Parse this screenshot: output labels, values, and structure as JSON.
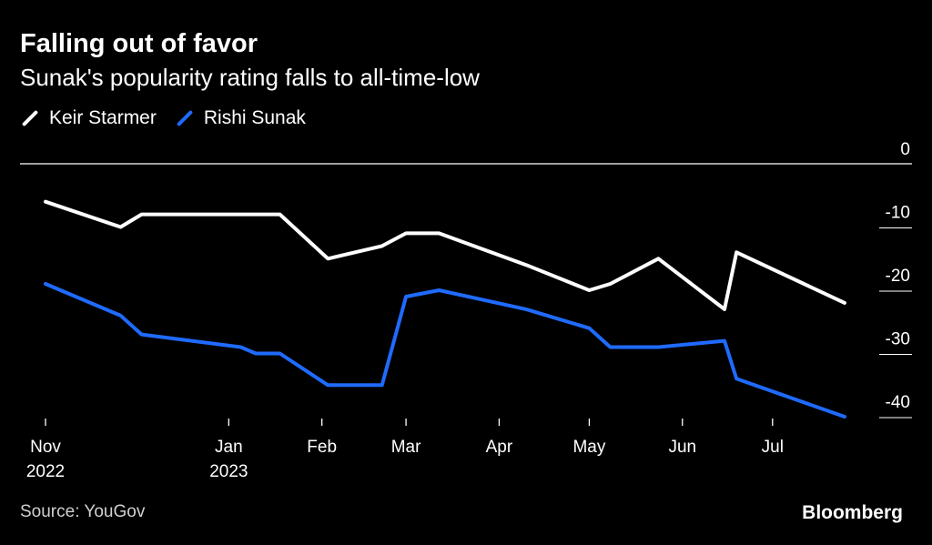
{
  "chart_data": {
    "type": "line",
    "title": "Falling out of favor",
    "subtitle": "Sunak's popularity rating falls to all-time-low",
    "ylim": [
      -42,
      0
    ],
    "y_ticks": [
      0,
      -10,
      -20,
      -30,
      -40
    ],
    "y_tick_labels": [
      "0",
      "-10",
      "-20",
      "-30",
      "-40"
    ],
    "x_ticks": [
      {
        "line1": "Nov",
        "line2": "2022",
        "day": 0
      },
      {
        "line1": "Jan",
        "line2": "2023",
        "day": 61
      },
      {
        "line1": "Feb",
        "line2": "",
        "day": 92
      },
      {
        "line1": "Mar",
        "line2": "",
        "day": 120
      },
      {
        "line1": "Apr",
        "line2": "",
        "day": 151
      },
      {
        "line1": "May",
        "line2": "",
        "day": 181
      },
      {
        "line1": "Jun",
        "line2": "",
        "day": 212
      },
      {
        "line1": "Jul",
        "line2": "",
        "day": 242
      }
    ],
    "x_range_days": [
      0,
      266
    ],
    "series": [
      {
        "name": "Keir Starmer",
        "color": "#ffffff",
        "points": [
          [
            0,
            -6
          ],
          [
            25,
            -10
          ],
          [
            32,
            -8
          ],
          [
            65,
            -8
          ],
          [
            70,
            -8
          ],
          [
            78,
            -8
          ],
          [
            94,
            -15
          ],
          [
            112,
            -13
          ],
          [
            120,
            -11
          ],
          [
            131,
            -11
          ],
          [
            160,
            -16
          ],
          [
            181,
            -20
          ],
          [
            188,
            -19
          ],
          [
            204,
            -15
          ],
          [
            226,
            -23
          ],
          [
            230,
            -14
          ],
          [
            266,
            -22
          ]
        ]
      },
      {
        "name": "Rishi Sunak",
        "color": "#1f6bff",
        "points": [
          [
            0,
            -19
          ],
          [
            25,
            -24
          ],
          [
            32,
            -27
          ],
          [
            65,
            -29
          ],
          [
            70,
            -30
          ],
          [
            78,
            -30
          ],
          [
            94,
            -35
          ],
          [
            112,
            -35
          ],
          [
            120,
            -21
          ],
          [
            131,
            -20
          ],
          [
            160,
            -23
          ],
          [
            181,
            -26
          ],
          [
            188,
            -29
          ],
          [
            204,
            -29
          ],
          [
            226,
            -28
          ],
          [
            230,
            -34
          ],
          [
            266,
            -40
          ]
        ]
      }
    ]
  },
  "legend": {
    "items": [
      {
        "label": "Keir Starmer",
        "color": "#ffffff"
      },
      {
        "label": "Rishi Sunak",
        "color": "#1f6bff"
      }
    ]
  },
  "footer": {
    "source": "Source: YouGov",
    "brand": "Bloomberg"
  }
}
